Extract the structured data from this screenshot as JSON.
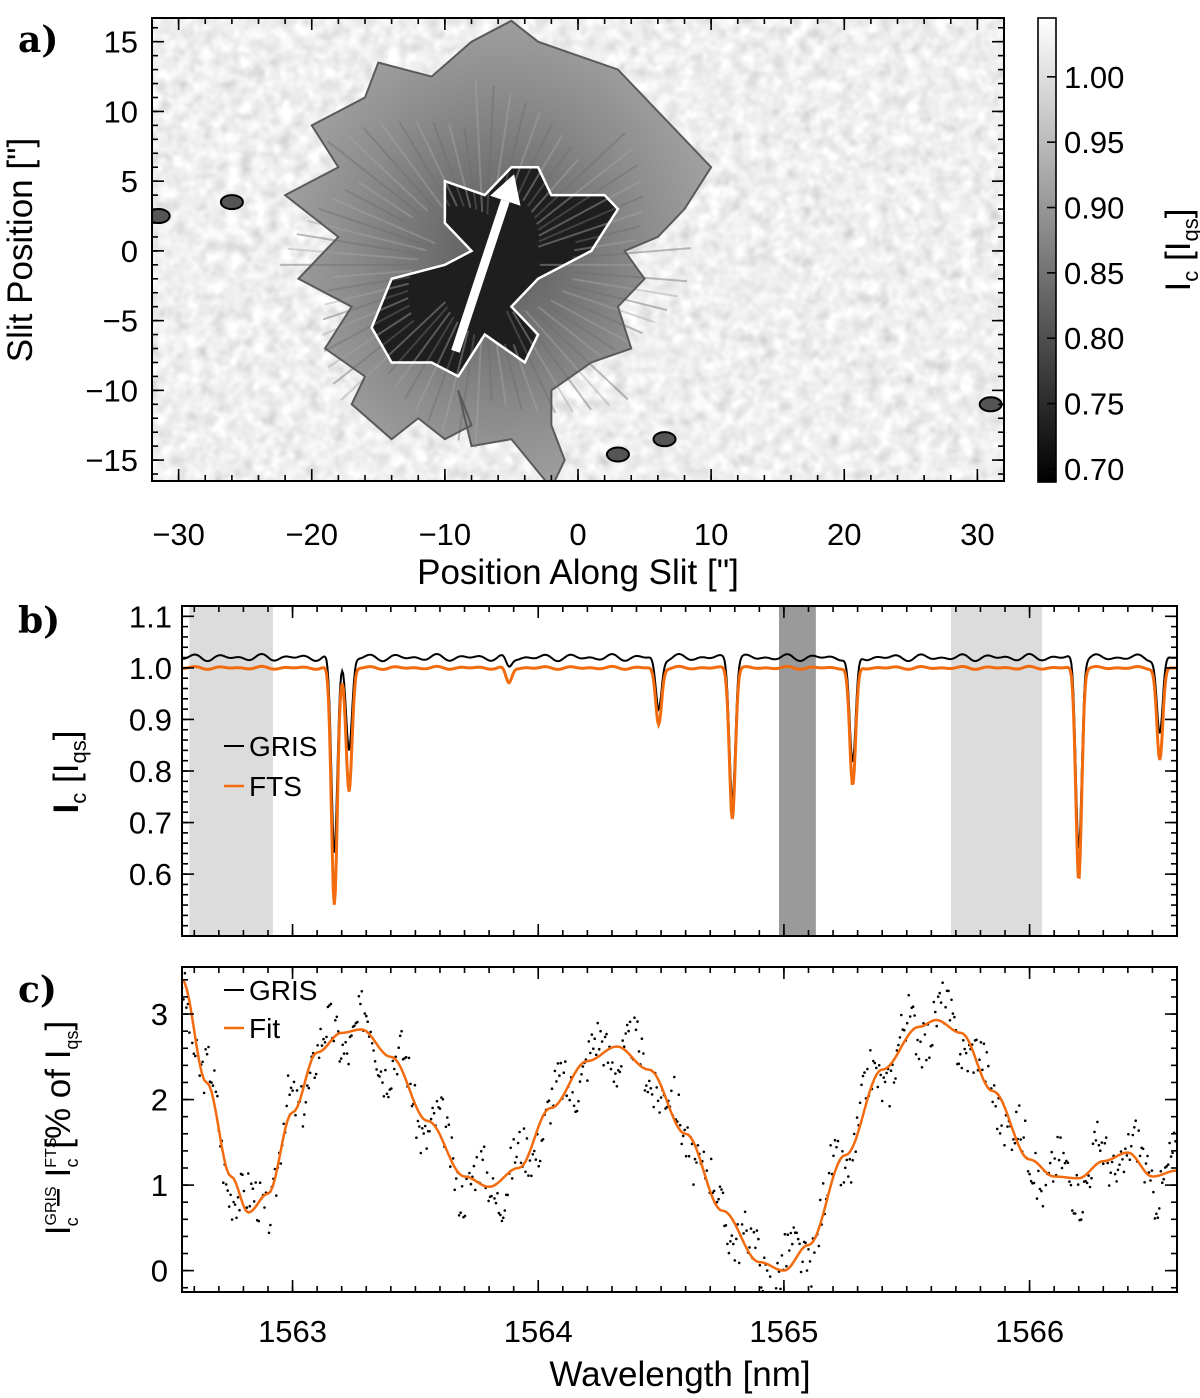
{
  "colors": {
    "gris": "#000000",
    "fts": "#f26b0f",
    "band_light": "#dcdcdc",
    "band_dark": "#9a9a9a",
    "contour_penumbra": "#5a5a5a",
    "contour_umbra": "#ffffff",
    "arrow": "#ffffff"
  },
  "panel_labels": {
    "a": "a)",
    "b": "b)",
    "c": "c)"
  },
  "chart_data": [
    {
      "panel": "a",
      "type": "heatmap",
      "description_text": "",
      "xlabel": "Position Along Slit [\"]",
      "ylabel": "Slit Position [\"]",
      "xlim": [
        -32,
        32
      ],
      "ylim": [
        -16.5,
        16.7
      ],
      "xticks": [
        "−30",
        "−20",
        "−10",
        "0",
        "10",
        "20",
        "30"
      ],
      "xtick_values": [
        -30,
        -20,
        -10,
        0,
        10,
        20,
        30
      ],
      "yticks": [
        "−15",
        "−10",
        "−5",
        "0",
        "5",
        "10",
        "15"
      ],
      "ytick_values": [
        -15,
        -10,
        -5,
        0,
        5,
        10,
        15
      ],
      "colorbar": {
        "label": "I",
        "label_sub": "c",
        "label_rest": " [I",
        "label_sub2": "qs",
        "label_end": "]",
        "range": [
          0.69,
          1.045
        ],
        "ticks": [
          "1.00",
          "0.95",
          "0.90",
          "0.85",
          "0.80",
          "0.75",
          "0.70"
        ],
        "tick_values": [
          1.0,
          0.95,
          0.9,
          0.85,
          0.8,
          0.75,
          0.7
        ]
      },
      "arrow": {
        "from": [
          -9.2,
          -7.2
        ],
        "to": [
          -4.8,
          5.5
        ]
      },
      "penumbra_contour": [
        [
          -9,
          -10
        ],
        [
          -8,
          -12.5
        ],
        [
          -10,
          -13.5
        ],
        [
          -12,
          -12
        ],
        [
          -14,
          -13.5
        ],
        [
          -17,
          -11
        ],
        [
          -16,
          -9
        ],
        [
          -19,
          -7
        ],
        [
          -17,
          -4
        ],
        [
          -21,
          -2
        ],
        [
          -18,
          1
        ],
        [
          -22,
          4
        ],
        [
          -18,
          6
        ],
        [
          -20,
          9
        ],
        [
          -16,
          11
        ],
        [
          -15,
          13.5
        ],
        [
          -11,
          12.5
        ],
        [
          -8,
          15
        ],
        [
          -5,
          16.5
        ],
        [
          -3,
          15
        ],
        [
          0,
          14
        ],
        [
          3,
          13
        ],
        [
          6,
          10
        ],
        [
          8,
          8
        ],
        [
          10,
          6
        ],
        [
          8,
          3
        ],
        [
          6,
          1
        ],
        [
          3.5,
          0
        ],
        [
          5,
          -2
        ],
        [
          3,
          -4
        ],
        [
          4,
          -7
        ],
        [
          1,
          -8
        ],
        [
          -2,
          -10
        ],
        [
          -2,
          -12.5
        ],
        [
          -1,
          -15
        ],
        [
          -2,
          -17
        ],
        [
          -5,
          -13.5
        ],
        [
          -8,
          -14
        ]
      ],
      "umbra_contour": [
        [
          -15.5,
          -5.5
        ],
        [
          -14,
          -2
        ],
        [
          -10,
          -1
        ],
        [
          -8,
          0
        ],
        [
          -10,
          2
        ],
        [
          -10,
          5
        ],
        [
          -7,
          4
        ],
        [
          -5,
          6
        ],
        [
          -3,
          6
        ],
        [
          -2,
          4
        ],
        [
          2,
          4
        ],
        [
          3,
          3
        ],
        [
          1,
          0
        ],
        [
          -3,
          -2
        ],
        [
          -5,
          -4
        ],
        [
          -3,
          -6
        ],
        [
          -4,
          -8
        ],
        [
          -7,
          -6
        ],
        [
          -9,
          -9
        ],
        [
          -11,
          -8
        ],
        [
          -14,
          -8
        ]
      ],
      "small_contours": [
        [
          -31.5,
          2.5
        ],
        [
          -26,
          3.5
        ],
        [
          6.5,
          -13.5
        ],
        [
          3,
          -14.6
        ],
        [
          31,
          -11
        ]
      ]
    },
    {
      "panel": "b",
      "type": "line",
      "xlim": [
        1562.55,
        1566.6
      ],
      "ylim": [
        0.48,
        1.12
      ],
      "ylabel_main": "I",
      "ylabel_sub": "c",
      "ylabel_rest": " [I",
      "ylabel_sub2": "qs",
      "ylabel_end": "]",
      "yticks": [
        "0.6",
        "0.7",
        "0.8",
        "0.9",
        "1.0",
        "1.1"
      ],
      "ytick_values": [
        0.6,
        0.7,
        0.8,
        0.9,
        1.0,
        1.1
      ],
      "xtick_values": [
        1563,
        1564,
        1565,
        1566
      ],
      "shaded_bands": [
        {
          "x0": 1562.58,
          "x1": 1562.92,
          "shade": "light"
        },
        {
          "x0": 1564.98,
          "x1": 1565.13,
          "shade": "dark"
        },
        {
          "x0": 1565.68,
          "x1": 1566.05,
          "shade": "light"
        }
      ],
      "continuum": {
        "GRIS": 1.02,
        "FTS": 1.0
      },
      "absorption_lines": [
        {
          "center": 1563.17,
          "depth_fts": 0.46,
          "depth_gris": 0.38
        },
        {
          "center": 1563.23,
          "depth_fts": 0.24,
          "depth_gris": 0.18
        },
        {
          "center": 1563.88,
          "depth_fts": 0.03,
          "depth_gris": 0.02
        },
        {
          "center": 1564.49,
          "depth_fts": 0.11,
          "depth_gris": 0.1
        },
        {
          "center": 1564.79,
          "depth_fts": 0.29,
          "depth_gris": 0.27
        },
        {
          "center": 1565.28,
          "depth_fts": 0.23,
          "depth_gris": 0.21
        },
        {
          "center": 1566.2,
          "depth_fts": 0.41,
          "depth_gris": 0.37
        },
        {
          "center": 1566.53,
          "depth_fts": 0.18,
          "depth_gris": 0.15
        }
      ],
      "series": [
        {
          "name": "GRIS"
        },
        {
          "name": "FTS"
        }
      ]
    },
    {
      "panel": "c",
      "type": "scatter",
      "xlim": [
        1562.55,
        1566.6
      ],
      "ylim": [
        -0.25,
        3.55
      ],
      "xlabel": "Wavelength [nm]",
      "ylabel_main": "I",
      "ylabel_sup1": "GRIS",
      "ylabel_sub1": "c",
      "ylabel_mid": " − I",
      "ylabel_sup2": "FTS",
      "ylabel_sub2": "c",
      "ylabel_rest": " [% of I",
      "ylabel_sub3": "qs",
      "ylabel_end": "]",
      "yticks": [
        "0",
        "1",
        "2",
        "3"
      ],
      "ytick_values": [
        0,
        1,
        2,
        3
      ],
      "xticks": [
        "1563",
        "1564",
        "1565",
        "1566"
      ],
      "xtick_values": [
        1563,
        1564,
        1565,
        1566
      ],
      "fit": {
        "x": [
          1562.55,
          1562.65,
          1562.75,
          1562.82,
          1562.9,
          1563.0,
          1563.1,
          1563.2,
          1563.28,
          1563.4,
          1563.55,
          1563.7,
          1563.8,
          1563.92,
          1564.05,
          1564.2,
          1564.32,
          1564.45,
          1564.6,
          1564.75,
          1564.9,
          1565.0,
          1565.1,
          1565.25,
          1565.4,
          1565.55,
          1565.62,
          1565.72,
          1565.85,
          1566.0,
          1566.1,
          1566.2,
          1566.3,
          1566.4,
          1566.5,
          1566.6
        ],
        "y": [
          3.4,
          2.2,
          1.1,
          0.68,
          0.9,
          1.85,
          2.55,
          2.78,
          2.82,
          2.5,
          1.75,
          1.1,
          0.98,
          1.2,
          1.9,
          2.45,
          2.62,
          2.35,
          1.6,
          0.7,
          0.1,
          0.0,
          0.3,
          1.35,
          2.35,
          2.85,
          2.93,
          2.78,
          2.1,
          1.3,
          1.1,
          1.08,
          1.28,
          1.38,
          1.1,
          1.17
        ]
      },
      "series": [
        {
          "name": "GRIS"
        },
        {
          "name": "Fit"
        }
      ]
    }
  ]
}
